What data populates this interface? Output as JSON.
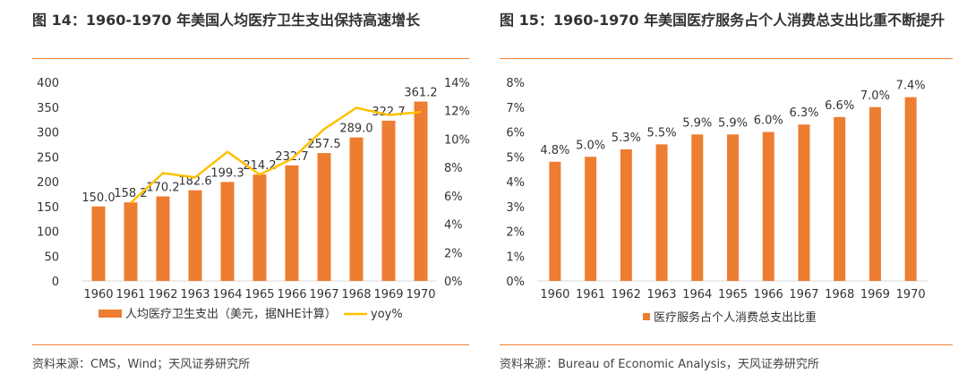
{
  "colors": {
    "accent": "#F07F2C",
    "bar": "#ED7D31",
    "line": "#FFC000"
  },
  "left": {
    "title": "图 14：1960-1970 年美国人均医疗卫生支出保持高速增长",
    "source": "资料来源：CMS，Wind；天风证券研究所"
  },
  "right": {
    "title": "图 15：1960-1970 年美国医疗服务占个人消费总支出比重不断提升",
    "source": "资料来源：Bureau of Economic Analysis，天风证券研究所"
  },
  "chart_data": [
    {
      "type": "bar",
      "categories": [
        "1960",
        "1961",
        "1962",
        "1963",
        "1964",
        "1965",
        "1966",
        "1967",
        "1968",
        "1969",
        "1970"
      ],
      "series": [
        {
          "name": "人均医疗卫生支出（美元，据NHE计算）",
          "type": "bar",
          "axis": "left",
          "values": [
            150.0,
            158.2,
            170.2,
            182.6,
            199.3,
            214.2,
            232.7,
            257.5,
            289.0,
            322.7,
            361.2
          ],
          "labels": [
            "150.0",
            "158.2",
            "170.2",
            "182.6",
            "199.3",
            "214.2",
            "232.7",
            "257.5",
            "289.0",
            "322.7",
            "361.2"
          ]
        },
        {
          "name": "yoy%",
          "type": "line",
          "axis": "right",
          "values": [
            null,
            5.5,
            7.6,
            7.3,
            9.1,
            7.5,
            8.6,
            10.7,
            12.2,
            11.7,
            11.9
          ]
        }
      ],
      "ylim": [
        0,
        400
      ],
      "yticks": [
        "0",
        "50",
        "100",
        "150",
        "200",
        "250",
        "300",
        "350",
        "400"
      ],
      "y2lim": [
        0,
        14
      ],
      "y2ticks": [
        "0%",
        "2%",
        "4%",
        "6%",
        "8%",
        "10%",
        "12%",
        "14%"
      ],
      "legend": "bottom"
    },
    {
      "type": "bar",
      "categories": [
        "1960",
        "1961",
        "1962",
        "1963",
        "1964",
        "1965",
        "1966",
        "1967",
        "1968",
        "1969",
        "1970"
      ],
      "series": [
        {
          "name": "医疗服务占个人消费总支出比重",
          "values": [
            4.8,
            5.0,
            5.3,
            5.5,
            5.9,
            5.9,
            6.0,
            6.3,
            6.6,
            7.0,
            7.4
          ],
          "labels": [
            "4.8%",
            "5.0%",
            "5.3%",
            "5.5%",
            "5.9%",
            "5.9%",
            "6.0%",
            "6.3%",
            "6.6%",
            "7.0%",
            "7.4%"
          ]
        }
      ],
      "ylim": [
        0,
        8
      ],
      "yticks": [
        "0%",
        "1%",
        "2%",
        "3%",
        "4%",
        "5%",
        "6%",
        "7%",
        "8%"
      ],
      "legend": "bottom"
    }
  ]
}
